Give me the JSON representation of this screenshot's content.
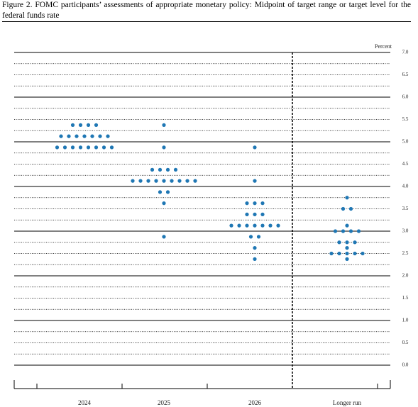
{
  "chart_data": {
    "type": "dot-plot",
    "title": "Figure 2.  FOMC participants’ assessments of appropriate monetary policy: Midpoint of target range or target level for the federal funds rate",
    "y_label": "Percent",
    "ylim": [
      0,
      7
    ],
    "yticks": [
      {
        "value": 0,
        "label": "0.0"
      },
      0.5,
      {
        "value": 1,
        "label": "1.0"
      },
      1.5,
      {
        "value": 2,
        "label": "2.0"
      },
      2.5,
      {
        "value": 3,
        "label": "3.0"
      },
      3.5,
      {
        "value": 4,
        "label": "4.0"
      },
      4.5,
      {
        "value": 5,
        "label": "5.0"
      },
      5.5,
      {
        "value": 6,
        "label": "6.0"
      },
      6.5,
      {
        "value": 7,
        "label": "7.0"
      }
    ],
    "minor_yticks": [
      0.25,
      0.75,
      1.25,
      1.75,
      2.25,
      2.75,
      3.25,
      3.75,
      4.25,
      4.75,
      5.25,
      5.75,
      6.25,
      6.75
    ],
    "color": "#1f77b4",
    "series": [
      {
        "name": "2024",
        "values": [
          5.375,
          5.375,
          5.375,
          5.375,
          5.125,
          5.125,
          5.125,
          5.125,
          5.125,
          5.125,
          5.125,
          4.875,
          4.875,
          4.875,
          4.875,
          4.875,
          4.875,
          4.875,
          4.875
        ]
      },
      {
        "name": "2025",
        "values": [
          5.375,
          4.875,
          4.375,
          4.375,
          4.375,
          4.375,
          4.125,
          4.125,
          4.125,
          4.125,
          4.125,
          4.125,
          4.125,
          4.125,
          4.125,
          3.875,
          3.875,
          3.625,
          2.875
        ]
      },
      {
        "name": "2026",
        "values": [
          4.875,
          4.125,
          3.625,
          3.625,
          3.625,
          3.375,
          3.375,
          3.375,
          3.125,
          3.125,
          3.125,
          3.125,
          3.125,
          3.125,
          3.125,
          2.875,
          2.875,
          2.625,
          2.375
        ]
      },
      {
        "name": "Longer run",
        "values": [
          3.75,
          3.5,
          3.5,
          3.125,
          3,
          3,
          3,
          3,
          2.75,
          2.75,
          2.75,
          2.625,
          2.5,
          2.5,
          2.5,
          2.5,
          2.5,
          2.375
        ]
      }
    ]
  }
}
